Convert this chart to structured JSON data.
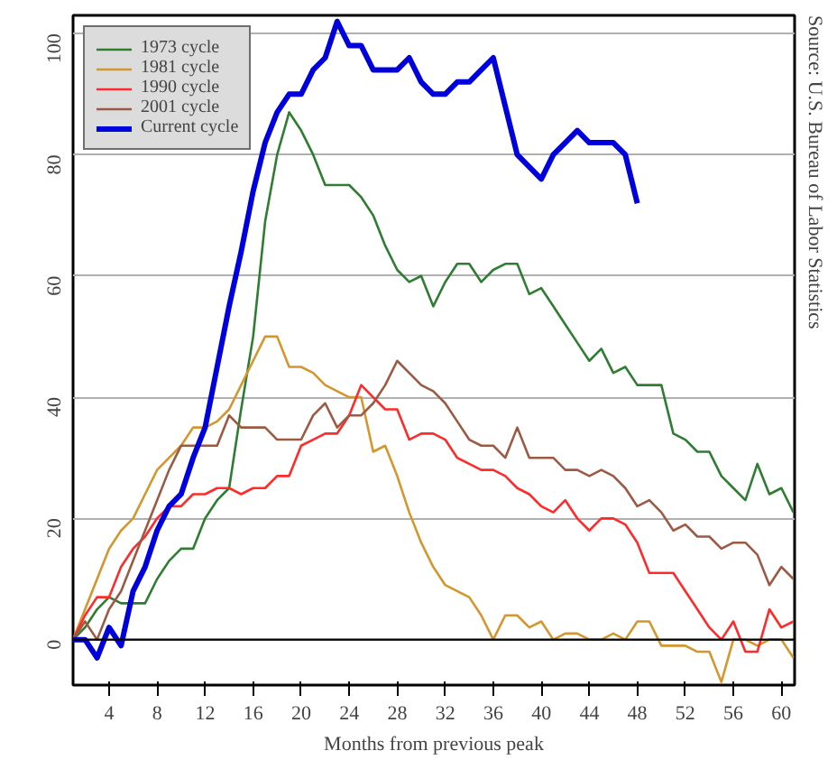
{
  "chart_data": {
    "type": "line",
    "xlabel": "Months from previous peak",
    "annotations": [
      "Source: U.S. Bureau of Labor Statistics"
    ],
    "xlim": [
      1,
      61.1
    ],
    "ylim": [
      -7.5,
      103
    ],
    "xticks": [
      4,
      8,
      12,
      16,
      20,
      24,
      28,
      32,
      36,
      40,
      44,
      48,
      52,
      56,
      60
    ],
    "yticks": [
      0,
      20,
      40,
      60,
      80,
      100
    ],
    "grid": "y",
    "legend": "top left",
    "line_style": "solid",
    "ref_lines": [
      {
        "axis": "y",
        "value": 0,
        "color": "#000000"
      }
    ],
    "series": [
      {
        "name": "1973 cycle",
        "color": "#2e7d32",
        "x": [
          1,
          2,
          3,
          4,
          5,
          6,
          7,
          8,
          9,
          10,
          11,
          12,
          13,
          14,
          15,
          16,
          17,
          18,
          19,
          20,
          21,
          22,
          23,
          24,
          25,
          26,
          27,
          28,
          29,
          30,
          31,
          32,
          33,
          34,
          35,
          36,
          37,
          38,
          39,
          40,
          41,
          42,
          43,
          44,
          45,
          46,
          47,
          48,
          49,
          50,
          51,
          52,
          53,
          54,
          55,
          56,
          57,
          58,
          59,
          60,
          61
        ],
        "values": [
          0,
          2,
          5,
          7,
          6,
          6,
          6,
          10,
          13,
          15,
          15,
          20,
          23,
          25,
          38,
          50,
          69,
          80,
          87,
          84,
          80,
          75,
          75,
          75,
          73,
          70,
          65,
          61,
          59,
          60,
          55,
          59,
          62,
          62,
          59,
          61,
          62,
          62,
          57,
          58,
          55,
          52,
          49,
          46,
          48,
          44,
          45,
          42,
          42,
          42,
          34,
          33,
          31,
          31,
          27,
          25,
          23,
          29,
          24,
          25,
          21
        ]
      },
      {
        "name": "1981 cycle",
        "color": "#d4962e",
        "x": [
          1,
          2,
          3,
          4,
          5,
          6,
          7,
          8,
          9,
          10,
          11,
          12,
          13,
          14,
          15,
          16,
          17,
          18,
          19,
          20,
          21,
          22,
          23,
          24,
          25,
          26,
          27,
          28,
          29,
          30,
          31,
          32,
          33,
          34,
          35,
          36,
          37,
          38,
          39,
          40,
          41,
          42,
          43,
          44,
          45,
          46,
          47,
          48,
          49,
          50,
          51,
          52,
          53,
          54,
          55,
          56,
          57,
          58,
          59,
          60,
          61
        ],
        "values": [
          0,
          5,
          10,
          15,
          18,
          20,
          24,
          28,
          30,
          32,
          35,
          35,
          36,
          38,
          42,
          46,
          50,
          50,
          45,
          45,
          44,
          42,
          41,
          40,
          40,
          31,
          32,
          27,
          21,
          16,
          12,
          9,
          8,
          7,
          4,
          0,
          4,
          4,
          2,
          3,
          0,
          1,
          1,
          0,
          0,
          1,
          0,
          3,
          3,
          -1,
          -1,
          -1,
          -2,
          -2,
          -7,
          0,
          0,
          -1,
          0,
          0,
          -3
        ]
      },
      {
        "name": "1990 cycle",
        "color": "#ff2a2a",
        "x": [
          1,
          2,
          3,
          4,
          5,
          6,
          7,
          8,
          9,
          10,
          11,
          12,
          13,
          14,
          15,
          16,
          17,
          18,
          19,
          20,
          21,
          22,
          23,
          24,
          25,
          26,
          27,
          28,
          29,
          30,
          31,
          32,
          33,
          34,
          35,
          36,
          37,
          38,
          39,
          40,
          41,
          42,
          43,
          44,
          45,
          46,
          47,
          48,
          49,
          50,
          51,
          52,
          53,
          54,
          55,
          56,
          57,
          58,
          59,
          60,
          61
        ],
        "values": [
          0,
          4,
          7,
          7,
          12,
          15,
          17,
          20,
          22,
          22,
          24,
          24,
          25,
          25,
          24,
          25,
          25,
          27,
          27,
          32,
          33,
          34,
          34,
          37,
          42,
          40,
          38,
          38,
          33,
          34,
          34,
          33,
          30,
          29,
          28,
          28,
          27,
          25,
          24,
          22,
          21,
          23,
          20,
          18,
          20,
          20,
          19,
          16,
          11,
          11,
          11,
          8,
          5,
          2,
          0,
          3,
          -2,
          -2,
          5,
          2,
          3
        ]
      },
      {
        "name": "2001 cycle",
        "color": "#9c5a45",
        "x": [
          1,
          2,
          3,
          4,
          5,
          6,
          7,
          8,
          9,
          10,
          11,
          12,
          13,
          14,
          15,
          16,
          17,
          18,
          19,
          20,
          21,
          22,
          23,
          24,
          25,
          26,
          27,
          28,
          29,
          30,
          31,
          32,
          33,
          34,
          35,
          36,
          37,
          38,
          39,
          40,
          41,
          42,
          43,
          44,
          45,
          46,
          47,
          48,
          49,
          50,
          51,
          52,
          53,
          54,
          55,
          56,
          57,
          58,
          59,
          60,
          61
        ],
        "values": [
          0,
          3,
          0,
          5,
          8,
          13,
          18,
          23,
          28,
          32,
          32,
          32,
          32,
          37,
          35,
          35,
          35,
          33,
          33,
          33,
          37,
          39,
          35,
          37,
          37,
          39,
          42,
          46,
          44,
          42,
          41,
          39,
          36,
          33,
          32,
          32,
          30,
          35,
          30,
          30,
          30,
          28,
          28,
          27,
          28,
          27,
          25,
          22,
          23,
          21,
          18,
          19,
          17,
          17,
          15,
          16,
          16,
          14,
          9,
          12,
          10
        ]
      },
      {
        "name": "Current cycle",
        "color": "#0000dd",
        "x": [
          1,
          2,
          3,
          4,
          5,
          6,
          7,
          8,
          9,
          10,
          11,
          12,
          13,
          14,
          15,
          16,
          17,
          18,
          19,
          20,
          21,
          22,
          23,
          24,
          25,
          26,
          27,
          28,
          29,
          30,
          31,
          32,
          33,
          34,
          35,
          36,
          37,
          38,
          39,
          40,
          41,
          42,
          43,
          44,
          45,
          46,
          47,
          48
        ],
        "values": [
          0,
          0,
          -3,
          2,
          -1,
          8,
          12,
          18,
          22,
          24,
          30,
          35,
          45,
          55,
          64,
          74,
          82,
          87,
          90,
          90,
          94,
          96,
          102,
          98,
          98,
          94,
          94,
          94,
          96,
          92,
          90,
          90,
          92,
          92,
          94,
          96,
          88,
          80,
          78,
          76,
          80,
          82,
          84,
          82,
          82,
          82,
          80,
          72
        ]
      }
    ]
  }
}
